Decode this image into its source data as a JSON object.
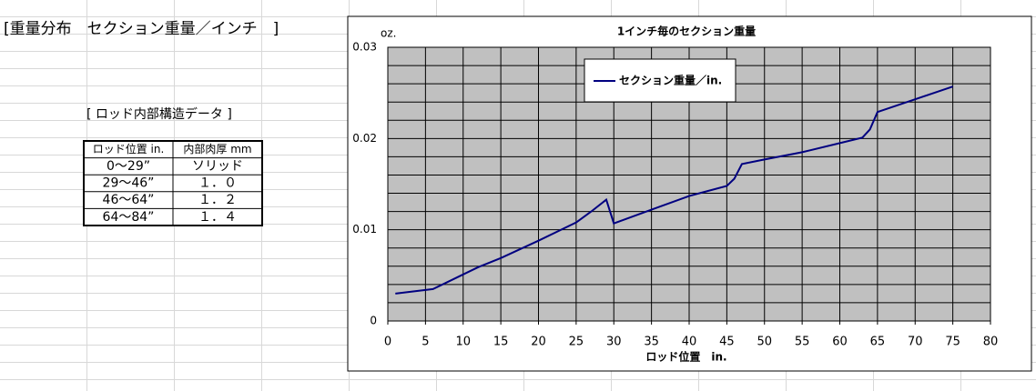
{
  "sheet_title": "[重量分布　セクション重量／インチ　]",
  "table": {
    "title": "[ ロッド内部構造データ ]",
    "header": [
      "ロッド位置 in.",
      "内部肉厚 mm"
    ],
    "rows": [
      [
        "0〜29”",
        "ソリッド"
      ],
      [
        "29〜46”",
        "１．０"
      ],
      [
        "46〜64”",
        "１．２"
      ],
      [
        "64〜84”",
        "１．４"
      ]
    ]
  },
  "chart_data": {
    "type": "line",
    "title": "1インチ毎のセクション重量",
    "y_unit_label": "oz.",
    "x_label": "ロッド位置　in.",
    "x": [
      1,
      3,
      6,
      10,
      12,
      15,
      20,
      25,
      27,
      29,
      30,
      35,
      40,
      45,
      46,
      47,
      50,
      55,
      60,
      63,
      64,
      65,
      70,
      75
    ],
    "series": [
      {
        "name": "セクション重量／in.",
        "color": "#000080",
        "values": [
          0.003,
          0.0032,
          0.0035,
          0.0051,
          0.0059,
          0.0069,
          0.0088,
          0.0108,
          0.012,
          0.0133,
          0.0107,
          0.0122,
          0.0137,
          0.0148,
          0.0156,
          0.0172,
          0.0177,
          0.0185,
          0.0195,
          0.0201,
          0.021,
          0.0229,
          0.0243,
          0.0257
        ]
      }
    ],
    "xlim": [
      0,
      80
    ],
    "xticks": [
      0,
      5,
      10,
      15,
      20,
      25,
      30,
      35,
      40,
      45,
      50,
      55,
      60,
      65,
      70,
      75,
      80
    ],
    "ylim": [
      0,
      0.03
    ],
    "yticks": [
      0,
      0.01,
      0.02,
      0.03
    ],
    "minor_yticks": [
      0.002,
      0.004,
      0.006,
      0.008,
      0.012,
      0.014,
      0.016,
      0.018,
      0.022,
      0.024,
      0.026,
      0.028
    ],
    "grid": true,
    "plot_background": "#c0c0c0",
    "legend": "top"
  }
}
